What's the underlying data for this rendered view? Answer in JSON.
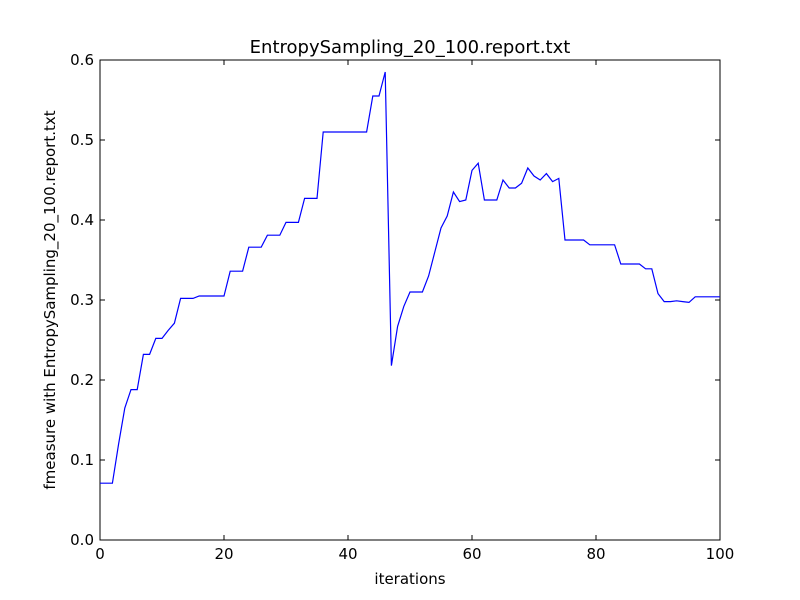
{
  "chart_data": {
    "type": "line",
    "title": "EntropySampling_20_100.report.txt",
    "xlabel": "iterations",
    "ylabel": "fmeasure with EntropySampling_20_100.report.txt",
    "xlim": [
      0,
      100
    ],
    "ylim": [
      0.0,
      0.6
    ],
    "x_ticks": [
      "0",
      "20",
      "40",
      "60",
      "80",
      "100"
    ],
    "y_ticks": [
      "0.0",
      "0.1",
      "0.2",
      "0.3",
      "0.4",
      "0.5",
      "0.6"
    ],
    "grid": false,
    "legend": "none",
    "series": [
      {
        "color": "#0000ff",
        "points": [
          [
            0,
            0.071
          ],
          [
            1,
            0.071
          ],
          [
            2,
            0.071
          ],
          [
            3,
            0.12
          ],
          [
            4,
            0.165
          ],
          [
            5,
            0.188
          ],
          [
            6,
            0.188
          ],
          [
            7,
            0.232
          ],
          [
            8,
            0.232
          ],
          [
            9,
            0.252
          ],
          [
            10,
            0.252
          ],
          [
            11,
            0.262
          ],
          [
            12,
            0.271
          ],
          [
            13,
            0.302
          ],
          [
            14,
            0.302
          ],
          [
            15,
            0.302
          ],
          [
            16,
            0.305
          ],
          [
            17,
            0.305
          ],
          [
            18,
            0.305
          ],
          [
            19,
            0.305
          ],
          [
            20,
            0.305
          ],
          [
            21,
            0.336
          ],
          [
            22,
            0.336
          ],
          [
            23,
            0.336
          ],
          [
            24,
            0.366
          ],
          [
            25,
            0.366
          ],
          [
            26,
            0.366
          ],
          [
            27,
            0.381
          ],
          [
            28,
            0.381
          ],
          [
            29,
            0.381
          ],
          [
            30,
            0.397
          ],
          [
            31,
            0.397
          ],
          [
            32,
            0.397
          ],
          [
            33,
            0.427
          ],
          [
            34,
            0.427
          ],
          [
            35,
            0.427
          ],
          [
            36,
            0.51
          ],
          [
            37,
            0.51
          ],
          [
            38,
            0.51
          ],
          [
            39,
            0.51
          ],
          [
            40,
            0.51
          ],
          [
            41,
            0.51
          ],
          [
            42,
            0.51
          ],
          [
            43,
            0.51
          ],
          [
            44,
            0.555
          ],
          [
            45,
            0.555
          ],
          [
            46,
            0.585
          ],
          [
            47,
            0.218
          ],
          [
            48,
            0.267
          ],
          [
            49,
            0.292
          ],
          [
            50,
            0.31
          ],
          [
            51,
            0.31
          ],
          [
            52,
            0.31
          ],
          [
            53,
            0.33
          ],
          [
            54,
            0.36
          ],
          [
            55,
            0.39
          ],
          [
            56,
            0.405
          ],
          [
            57,
            0.435
          ],
          [
            58,
            0.423
          ],
          [
            59,
            0.425
          ],
          [
            60,
            0.462
          ],
          [
            61,
            0.471
          ],
          [
            62,
            0.425
          ],
          [
            63,
            0.425
          ],
          [
            64,
            0.425
          ],
          [
            65,
            0.45
          ],
          [
            66,
            0.44
          ],
          [
            67,
            0.44
          ],
          [
            68,
            0.446
          ],
          [
            69,
            0.465
          ],
          [
            70,
            0.455
          ],
          [
            71,
            0.45
          ],
          [
            72,
            0.458
          ],
          [
            73,
            0.448
          ],
          [
            74,
            0.452
          ],
          [
            75,
            0.375
          ],
          [
            76,
            0.375
          ],
          [
            77,
            0.375
          ],
          [
            78,
            0.375
          ],
          [
            79,
            0.369
          ],
          [
            80,
            0.369
          ],
          [
            81,
            0.369
          ],
          [
            82,
            0.369
          ],
          [
            83,
            0.369
          ],
          [
            84,
            0.345
          ],
          [
            85,
            0.345
          ],
          [
            86,
            0.345
          ],
          [
            87,
            0.345
          ],
          [
            88,
            0.339
          ],
          [
            89,
            0.339
          ],
          [
            90,
            0.308
          ],
          [
            91,
            0.298
          ],
          [
            92,
            0.298
          ],
          [
            93,
            0.299
          ],
          [
            94,
            0.298
          ],
          [
            95,
            0.297
          ],
          [
            96,
            0.304
          ],
          [
            97,
            0.304
          ],
          [
            98,
            0.304
          ],
          [
            99,
            0.304
          ],
          [
            100,
            0.304
          ]
        ]
      }
    ]
  }
}
